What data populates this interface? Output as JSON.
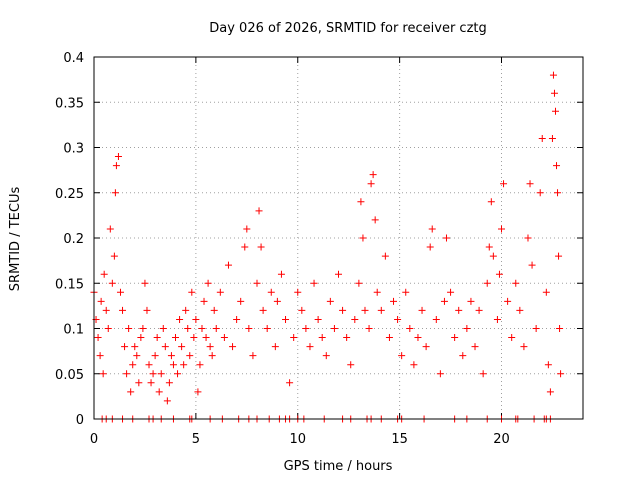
{
  "chart_data": {
    "type": "scatter",
    "title": "Day 026 of 2026, SRMTID for receiver cztg",
    "xlabel": "GPS time / hours",
    "ylabel": "SRMTID / TECUs",
    "xlim": [
      0,
      24
    ],
    "ylim": [
      0,
      0.4
    ],
    "xticks": [
      0,
      5,
      10,
      15,
      20
    ],
    "xtick_labels": [
      "0",
      "5",
      "10",
      "15",
      "20"
    ],
    "yticks": [
      0,
      0.05,
      0.1,
      0.15,
      0.2,
      0.25,
      0.3,
      0.35,
      0.4
    ],
    "ytick_labels": [
      "0",
      "0.05",
      "0.1",
      "0.15",
      "0.2",
      "0.25",
      "0.3",
      "0.35",
      "0.4"
    ],
    "grid": true,
    "marker": "+",
    "color": "#ff0000",
    "series": [
      {
        "name": "SRMTID",
        "points": [
          [
            0.0,
            0.14
          ],
          [
            0.1,
            0.11
          ],
          [
            0.2,
            0.09
          ],
          [
            0.3,
            0.07
          ],
          [
            0.35,
            0.13
          ],
          [
            0.45,
            0.05
          ],
          [
            0.5,
            0.16
          ],
          [
            0.6,
            0.12
          ],
          [
            0.7,
            0.1
          ],
          [
            0.8,
            0.21
          ],
          [
            0.9,
            0.15
          ],
          [
            1.0,
            0.18
          ],
          [
            1.05,
            0.25
          ],
          [
            1.1,
            0.28
          ],
          [
            1.2,
            0.29
          ],
          [
            1.3,
            0.14
          ],
          [
            1.4,
            0.12
          ],
          [
            1.5,
            0.08
          ],
          [
            1.6,
            0.05
          ],
          [
            1.7,
            0.1
          ],
          [
            1.8,
            0.03
          ],
          [
            1.9,
            0.06
          ],
          [
            2.0,
            0.08
          ],
          [
            2.1,
            0.07
          ],
          [
            2.2,
            0.04
          ],
          [
            2.3,
            0.09
          ],
          [
            2.4,
            0.1
          ],
          [
            2.5,
            0.15
          ],
          [
            2.6,
            0.12
          ],
          [
            2.7,
            0.06
          ],
          [
            2.8,
            0.04
          ],
          [
            2.9,
            0.05
          ],
          [
            3.0,
            0.07
          ],
          [
            3.1,
            0.09
          ],
          [
            3.2,
            0.03
          ],
          [
            3.3,
            0.05
          ],
          [
            3.4,
            0.1
          ],
          [
            3.5,
            0.08
          ],
          [
            3.6,
            0.02
          ],
          [
            3.7,
            0.04
          ],
          [
            3.8,
            0.07
          ],
          [
            3.9,
            0.06
          ],
          [
            4.0,
            0.09
          ],
          [
            4.1,
            0.05
          ],
          [
            4.2,
            0.11
          ],
          [
            4.3,
            0.08
          ],
          [
            4.4,
            0.06
          ],
          [
            4.5,
            0.12
          ],
          [
            4.6,
            0.1
          ],
          [
            4.7,
            0.07
          ],
          [
            4.8,
            0.14
          ],
          [
            4.9,
            0.09
          ],
          [
            5.0,
            0.11
          ],
          [
            5.1,
            0.03
          ],
          [
            5.2,
            0.06
          ],
          [
            5.3,
            0.1
          ],
          [
            5.4,
            0.13
          ],
          [
            5.5,
            0.09
          ],
          [
            5.6,
            0.15
          ],
          [
            5.7,
            0.08
          ],
          [
            5.8,
            0.07
          ],
          [
            5.9,
            0.12
          ],
          [
            6.0,
            0.1
          ],
          [
            6.2,
            0.14
          ],
          [
            6.4,
            0.09
          ],
          [
            6.6,
            0.17
          ],
          [
            6.8,
            0.08
          ],
          [
            7.0,
            0.11
          ],
          [
            7.2,
            0.13
          ],
          [
            7.4,
            0.19
          ],
          [
            7.5,
            0.21
          ],
          [
            7.6,
            0.1
          ],
          [
            7.8,
            0.07
          ],
          [
            8.0,
            0.15
          ],
          [
            8.1,
            0.23
          ],
          [
            8.2,
            0.19
          ],
          [
            8.3,
            0.12
          ],
          [
            8.5,
            0.1
          ],
          [
            8.7,
            0.14
          ],
          [
            8.9,
            0.08
          ],
          [
            9.0,
            0.13
          ],
          [
            9.2,
            0.16
          ],
          [
            9.4,
            0.11
          ],
          [
            9.6,
            0.04
          ],
          [
            9.8,
            0.09
          ],
          [
            10.0,
            0.14
          ],
          [
            10.2,
            0.12
          ],
          [
            10.4,
            0.1
          ],
          [
            10.6,
            0.08
          ],
          [
            10.8,
            0.15
          ],
          [
            11.0,
            0.11
          ],
          [
            11.2,
            0.09
          ],
          [
            11.4,
            0.07
          ],
          [
            11.6,
            0.13
          ],
          [
            11.8,
            0.1
          ],
          [
            12.0,
            0.16
          ],
          [
            12.2,
            0.12
          ],
          [
            12.4,
            0.09
          ],
          [
            12.6,
            0.06
          ],
          [
            12.8,
            0.11
          ],
          [
            13.0,
            0.15
          ],
          [
            13.1,
            0.24
          ],
          [
            13.2,
            0.2
          ],
          [
            13.3,
            0.12
          ],
          [
            13.5,
            0.1
          ],
          [
            13.6,
            0.26
          ],
          [
            13.7,
            0.27
          ],
          [
            13.8,
            0.22
          ],
          [
            13.9,
            0.14
          ],
          [
            14.1,
            0.12
          ],
          [
            14.3,
            0.18
          ],
          [
            14.5,
            0.09
          ],
          [
            14.7,
            0.13
          ],
          [
            14.9,
            0.11
          ],
          [
            15.1,
            0.07
          ],
          [
            15.3,
            0.14
          ],
          [
            15.5,
            0.1
          ],
          [
            15.7,
            0.06
          ],
          [
            15.9,
            0.09
          ],
          [
            16.1,
            0.12
          ],
          [
            16.3,
            0.08
          ],
          [
            16.5,
            0.19
          ],
          [
            16.6,
            0.21
          ],
          [
            16.8,
            0.11
          ],
          [
            17.0,
            0.05
          ],
          [
            17.2,
            0.13
          ],
          [
            17.3,
            0.2
          ],
          [
            17.5,
            0.14
          ],
          [
            17.7,
            0.09
          ],
          [
            17.9,
            0.12
          ],
          [
            18.1,
            0.07
          ],
          [
            18.3,
            0.1
          ],
          [
            18.5,
            0.13
          ],
          [
            18.7,
            0.08
          ],
          [
            18.9,
            0.12
          ],
          [
            19.1,
            0.05
          ],
          [
            19.3,
            0.15
          ],
          [
            19.4,
            0.19
          ],
          [
            19.5,
            0.24
          ],
          [
            19.6,
            0.18
          ],
          [
            19.8,
            0.11
          ],
          [
            19.9,
            0.16
          ],
          [
            20.0,
            0.21
          ],
          [
            20.1,
            0.26
          ],
          [
            20.3,
            0.13
          ],
          [
            20.5,
            0.09
          ],
          [
            20.7,
            0.15
          ],
          [
            20.9,
            0.12
          ],
          [
            21.1,
            0.08
          ],
          [
            21.3,
            0.2
          ],
          [
            21.4,
            0.26
          ],
          [
            21.5,
            0.17
          ],
          [
            21.7,
            0.1
          ],
          [
            21.9,
            0.25
          ],
          [
            22.0,
            0.31
          ],
          [
            22.2,
            0.14
          ],
          [
            22.3,
            0.06
          ],
          [
            22.4,
            0.03
          ],
          [
            22.5,
            0.31
          ],
          [
            22.55,
            0.38
          ],
          [
            22.6,
            0.36
          ],
          [
            22.65,
            0.34
          ],
          [
            22.7,
            0.28
          ],
          [
            22.75,
            0.25
          ],
          [
            22.8,
            0.18
          ],
          [
            22.85,
            0.1
          ],
          [
            22.9,
            0.05
          ]
        ],
        "zero_rug": [
          0.4,
          0.6,
          0.9,
          1.4,
          1.9,
          2.7,
          2.9,
          3.3,
          3.9,
          4.7,
          4.8,
          5.7,
          6.3,
          7.1,
          7.6,
          8.0,
          8.6,
          9.1,
          9.4,
          9.6,
          10.0,
          10.3,
          11.3,
          12.2,
          12.6,
          13.4,
          13.6,
          14.1,
          14.9,
          15.1,
          16.2,
          17.7,
          18.3,
          19.3,
          20.0,
          20.7,
          20.8,
          21.6,
          22.1,
          22.2,
          22.4
        ]
      }
    ]
  }
}
